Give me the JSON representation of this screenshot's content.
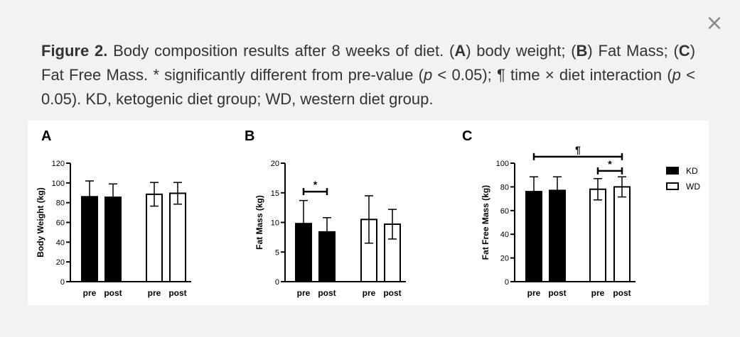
{
  "close_label": "×",
  "caption": {
    "fig_label": "Figure 2.",
    "t1": " Body composition results after 8 weeks of diet. (",
    "a": "A",
    "t2": ") body weight; (",
    "b": "B",
    "t3": ") Fat Mass; (",
    "c": "C",
    "t4": ") Fat Free Mass. * significantly different from pre-value (",
    "p1": "p",
    "t5": " < 0.05); ¶ time × diet interaction (",
    "p2": "p",
    "t6": " < 0.05). KD, ketogenic diet group; WD, western diet group."
  },
  "colors": {
    "kd": "#000000",
    "wd": "#ffffff",
    "stroke": "#000000"
  },
  "legend": [
    {
      "label": "KD",
      "fill": "#000000"
    },
    {
      "label": "WD",
      "fill": "#ffffff"
    }
  ],
  "chart_data": [
    {
      "type": "bar",
      "panel_label": "A",
      "ylabel": "Body Weight (kg)",
      "ylim": [
        0,
        120
      ],
      "yticks": [
        0,
        20,
        40,
        60,
        80,
        100,
        120
      ],
      "categories": [
        "pre",
        "post",
        "pre",
        "post"
      ],
      "groups": [
        "KD",
        "KD",
        "WD",
        "WD"
      ],
      "values": [
        86,
        85.5,
        88.5,
        89.5
      ],
      "errors": [
        16,
        13.5,
        12,
        11
      ],
      "annotations": []
    },
    {
      "type": "bar",
      "panel_label": "B",
      "ylabel": "Fat Mass (kg)",
      "ylim": [
        0,
        20
      ],
      "yticks": [
        0,
        5,
        10,
        15,
        20
      ],
      "categories": [
        "pre",
        "post",
        "pre",
        "post"
      ],
      "groups": [
        "KD",
        "KD",
        "WD",
        "WD"
      ],
      "values": [
        9.8,
        8.4,
        10.5,
        9.7
      ],
      "errors": [
        3.9,
        2.4,
        4.0,
        2.5
      ],
      "annotations": [
        {
          "text": "*",
          "from": 0,
          "to": 1,
          "y": 15.2
        }
      ]
    },
    {
      "type": "bar",
      "panel_label": "C",
      "ylabel": "Fat Free Mass (kg)",
      "ylim": [
        0,
        100
      ],
      "yticks": [
        0,
        20,
        40,
        60,
        80,
        100
      ],
      "categories": [
        "pre",
        "post",
        "pre",
        "post"
      ],
      "groups": [
        "KD",
        "KD",
        "WD",
        "WD"
      ],
      "values": [
        76,
        77,
        78,
        80
      ],
      "errors": [
        12.5,
        11.5,
        9,
        8.5
      ],
      "annotations": [
        {
          "text": "¶",
          "from": 0,
          "to": 3,
          "y": 105.5
        },
        {
          "text": "*",
          "from": 2,
          "to": 3,
          "y": 93.5
        }
      ]
    }
  ]
}
